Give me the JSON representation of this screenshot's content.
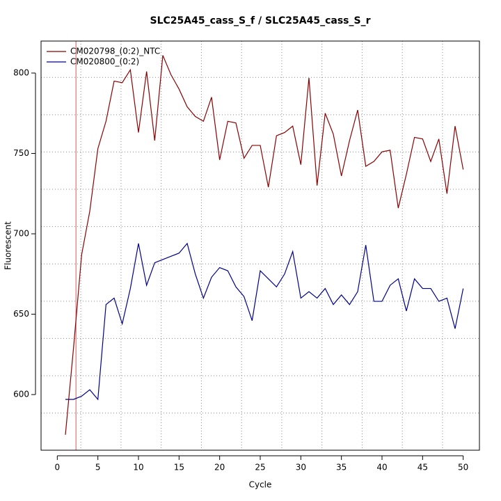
{
  "chart_data": {
    "type": "line",
    "title": "SLC25A45_cass_S_f / SLC25A45_cass_S_r",
    "x_label": "Cycle",
    "y_label": "Fluorescent",
    "x": [
      1,
      2,
      3,
      4,
      5,
      6,
      7,
      8,
      9,
      10,
      11,
      12,
      13,
      14,
      15,
      16,
      17,
      18,
      19,
      20,
      21,
      22,
      23,
      24,
      25,
      26,
      27,
      28,
      29,
      30,
      31,
      32,
      33,
      34,
      35,
      36,
      37,
      38,
      39,
      40,
      41,
      42,
      43,
      44,
      45,
      46,
      47,
      48,
      49,
      50
    ],
    "series": [
      {
        "name": "CM020798_(0:2)_NTC",
        "color": "#8b0000",
        "values": [
          575,
          629,
          687,
          714,
          753,
          770,
          795,
          794,
          802,
          763,
          801,
          758,
          811,
          799,
          790,
          779,
          773,
          770,
          785,
          746,
          770,
          769,
          747,
          755,
          755,
          729,
          761,
          763,
          767,
          743,
          797,
          730,
          775,
          762,
          736,
          758,
          777,
          742,
          745,
          751,
          752,
          716,
          737,
          760,
          759,
          745,
          759,
          725,
          767,
          740
        ]
      },
      {
        "name": "CM020800_(0:2)",
        "color": "#00008b",
        "values": [
          597,
          597,
          599,
          603,
          597,
          656,
          660,
          644,
          666,
          694,
          668,
          682,
          684,
          686,
          688,
          694,
          675,
          660,
          673,
          679,
          677,
          667,
          661,
          646,
          677,
          672,
          667,
          675,
          689,
          660,
          664,
          660,
          666,
          656,
          662,
          656,
          664,
          693,
          658,
          658,
          668,
          672,
          652,
          672,
          666,
          666,
          658,
          660,
          641,
          666
        ]
      }
    ],
    "xlim": [
      -2,
      52
    ],
    "ylim": [
      565.4,
      819.9
    ],
    "xticks": [
      0,
      5,
      10,
      15,
      20,
      25,
      30,
      35,
      40,
      45,
      50
    ],
    "yticks": [
      600,
      650,
      700,
      750,
      800
    ],
    "xgrid": [
      2.9,
      7.85,
      12.8,
      17.75,
      22.7,
      27.65,
      32.6,
      37.55,
      42.5,
      47.45
    ],
    "ygrid": [
      588.5,
      611.7,
      634.9,
      658.1,
      681.3,
      704.5,
      727.7,
      750.9,
      774.1,
      797.3
    ],
    "vline": 2.3,
    "vline_color": "#cd5c5c",
    "legend": "top-left"
  }
}
